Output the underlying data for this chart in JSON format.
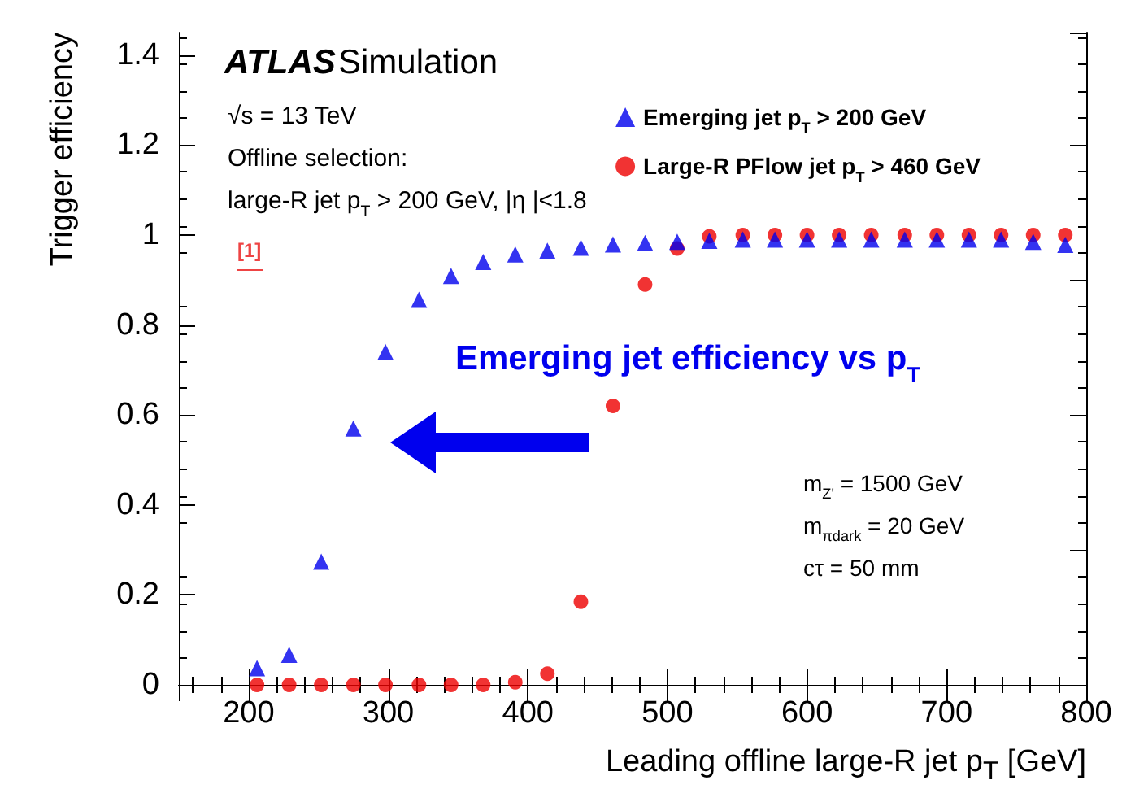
{
  "chart_data": {
    "type": "scatter",
    "xlabel": "Leading offline large-R jet p$_{T}$ [GeV]",
    "ylabel": "Trigger efficiency",
    "x": [
      206,
      229,
      252,
      275,
      298,
      322,
      345,
      368,
      391,
      414,
      438,
      461,
      484,
      507,
      530,
      554,
      577,
      600,
      623,
      646,
      670,
      693,
      716,
      739,
      762,
      785
    ],
    "series": [
      {
        "name": "Emerging jet p$_{T}$ > 200 GeV",
        "color": "#0000ee",
        "marker": "triangle",
        "values": [
          0.037,
          0.067,
          0.274,
          0.57,
          0.74,
          0.856,
          0.909,
          0.94,
          0.957,
          0.965,
          0.972,
          0.979,
          0.982,
          0.985,
          0.987,
          0.99,
          0.99,
          0.99,
          0.99,
          0.99,
          0.99,
          0.99,
          0.99,
          0.99,
          0.985,
          0.978
        ]
      },
      {
        "name": "Large-R PFlow jet p$_{T}$ > 460 GeV",
        "color": "#ee0000",
        "marker": "circle",
        "values": [
          0,
          0,
          0,
          0,
          0,
          0,
          0,
          0,
          0.006,
          0.025,
          0.185,
          0.62,
          0.89,
          0.97,
          0.997,
          1,
          1,
          1,
          1,
          1,
          1,
          1,
          1,
          1,
          1,
          1
        ]
      }
    ],
    "xlim": [
      150,
      800
    ],
    "xticks": [
      200,
      300,
      400,
      500,
      600,
      700,
      800
    ],
    "ylim": [
      0,
      1.45
    ],
    "yticks": [
      0,
      0.2,
      0.4,
      0.6,
      0.8,
      1,
      1.2,
      1.4
    ],
    "grid": false,
    "legend": "top right",
    "annotations": [
      "ATLAS",
      "Simulation",
      "√s = 13 TeV",
      "Offline selection:",
      "large-R jet p$_{T}$ > 200 GeV, |η |<1.8",
      "[1]",
      "Emerging jet efficiency vs p$_{T}$",
      "m$_{Z'}$ = 1500 GeV",
      "m$_{π}$$_{dark}$ = 20 GeV",
      "cτ = 50 mm"
    ]
  }
}
